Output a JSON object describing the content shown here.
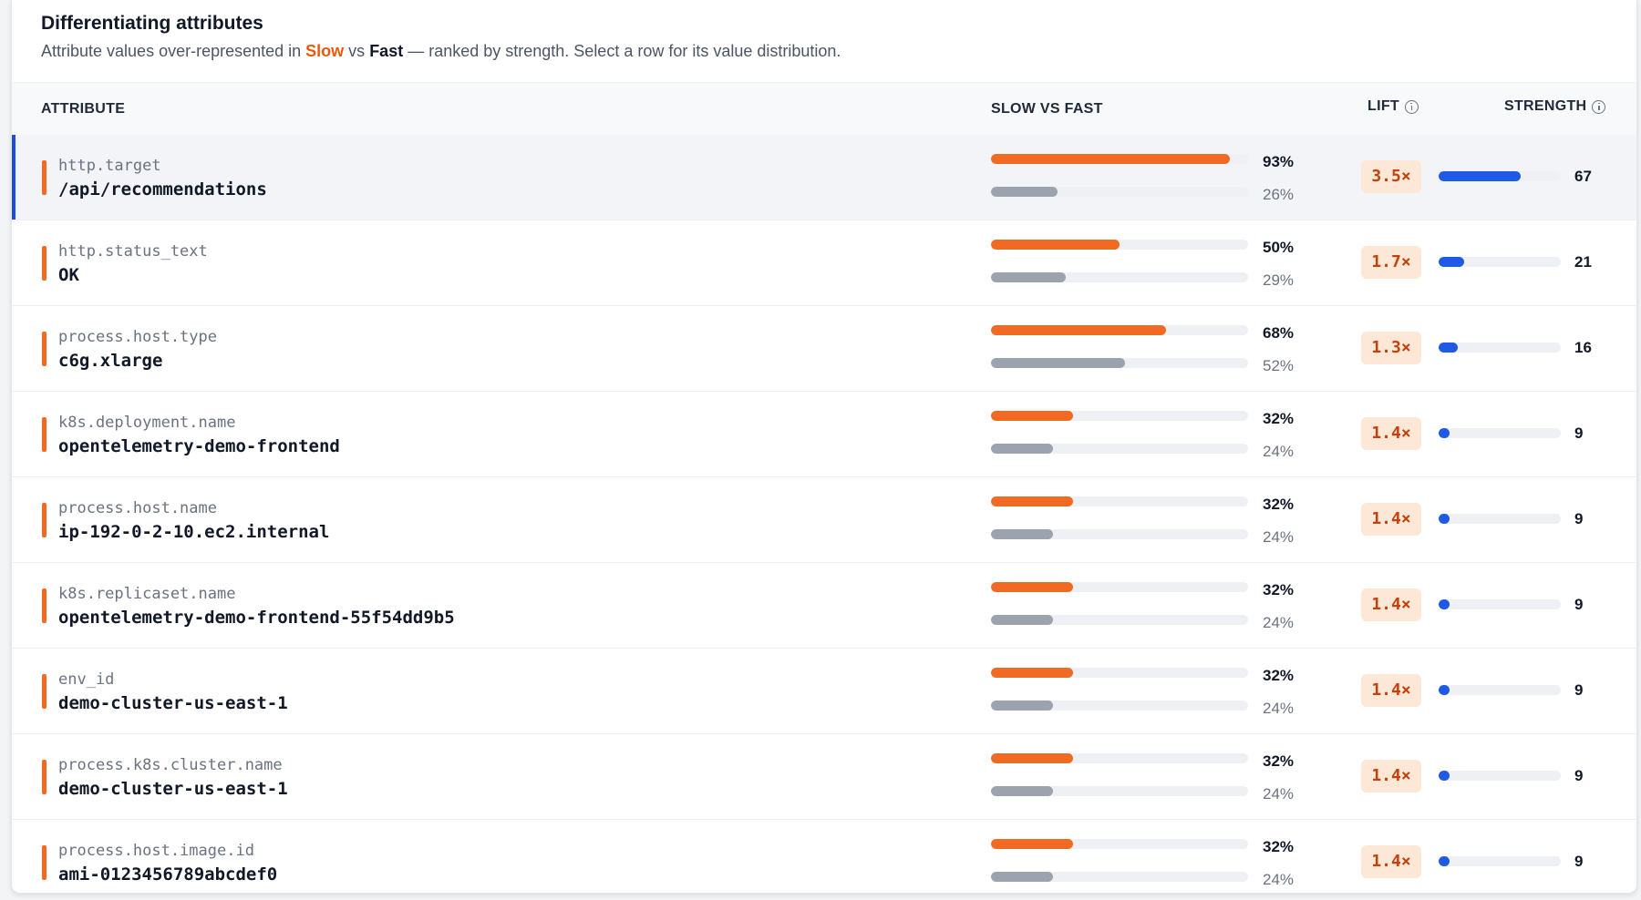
{
  "header": {
    "title": "Differentiating attributes",
    "subtitle_prefix": "Attribute values over-represented in ",
    "slow_label": "Slow",
    "vs": " vs ",
    "fast_label": "Fast",
    "subtitle_suffix": " — ranked by strength. Select a row for its value distribution."
  },
  "columns": {
    "attribute": "ATTRIBUTE",
    "slow_vs_fast": "SLOW VS FAST",
    "lift": "LIFT",
    "strength": "STRENGTH"
  },
  "colors": {
    "slow": "#f06a24",
    "fast": "#9ca3af",
    "strength": "#1f5ae6",
    "selected_accent": "#1d4ed8"
  },
  "rows": [
    {
      "key": "http.target",
      "value": "/api/recommendations",
      "slow_pct": 93,
      "fast_pct": 26,
      "slow_label": "93%",
      "fast_label": "26%",
      "lift": "3.5×",
      "strength": 67,
      "strength_label": "67",
      "selected": true
    },
    {
      "key": "http.status_text",
      "value": "OK",
      "slow_pct": 50,
      "fast_pct": 29,
      "slow_label": "50%",
      "fast_label": "29%",
      "lift": "1.7×",
      "strength": 21,
      "strength_label": "21",
      "selected": false
    },
    {
      "key": "process.host.type",
      "value": "c6g.xlarge",
      "slow_pct": 68,
      "fast_pct": 52,
      "slow_label": "68%",
      "fast_label": "52%",
      "lift": "1.3×",
      "strength": 16,
      "strength_label": "16",
      "selected": false
    },
    {
      "key": "k8s.deployment.name",
      "value": "opentelemetry-demo-frontend",
      "slow_pct": 32,
      "fast_pct": 24,
      "slow_label": "32%",
      "fast_label": "24%",
      "lift": "1.4×",
      "strength": 9,
      "strength_label": "9",
      "selected": false
    },
    {
      "key": "process.host.name",
      "value": "ip-192-0-2-10.ec2.internal",
      "slow_pct": 32,
      "fast_pct": 24,
      "slow_label": "32%",
      "fast_label": "24%",
      "lift": "1.4×",
      "strength": 9,
      "strength_label": "9",
      "selected": false
    },
    {
      "key": "k8s.replicaset.name",
      "value": "opentelemetry-demo-frontend-55f54dd9b5",
      "slow_pct": 32,
      "fast_pct": 24,
      "slow_label": "32%",
      "fast_label": "24%",
      "lift": "1.4×",
      "strength": 9,
      "strength_label": "9",
      "selected": false
    },
    {
      "key": "env_id",
      "value": "demo-cluster-us-east-1",
      "slow_pct": 32,
      "fast_pct": 24,
      "slow_label": "32%",
      "fast_label": "24%",
      "lift": "1.4×",
      "strength": 9,
      "strength_label": "9",
      "selected": false
    },
    {
      "key": "process.k8s.cluster.name",
      "value": "demo-cluster-us-east-1",
      "slow_pct": 32,
      "fast_pct": 24,
      "slow_label": "32%",
      "fast_label": "24%",
      "lift": "1.4×",
      "strength": 9,
      "strength_label": "9",
      "selected": false
    },
    {
      "key": "process.host.image.id",
      "value": "ami-0123456789abcdef0",
      "slow_pct": 32,
      "fast_pct": 24,
      "slow_label": "32%",
      "fast_label": "24%",
      "lift": "1.4×",
      "strength": 9,
      "strength_label": "9",
      "selected": false
    }
  ]
}
